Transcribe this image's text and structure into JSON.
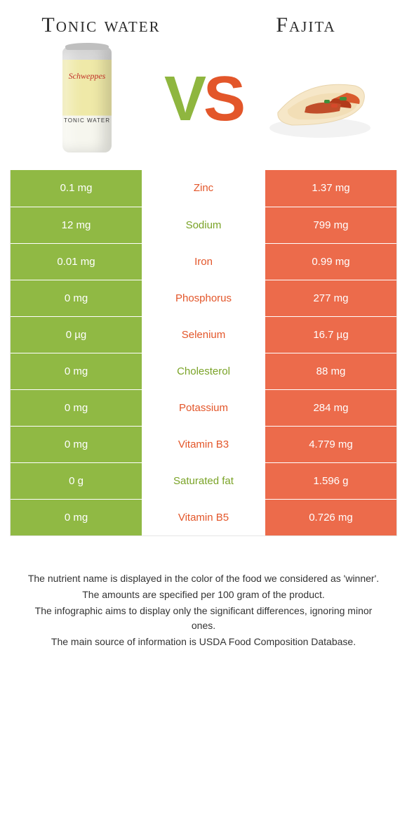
{
  "header": {
    "left_title": "Tonic water",
    "right_title": "Fajita",
    "vs_v": "V",
    "vs_s": "S",
    "can_brand": "Schweppes",
    "can_sub": "TONIC WATER"
  },
  "colors": {
    "green": "#90b944",
    "orange": "#ec6b4b",
    "green_text": "#7aa327",
    "orange_text": "#e3562a",
    "border": "#e6e6e6",
    "bg": "#ffffff"
  },
  "table": {
    "rows": [
      {
        "left": "0.1 mg",
        "label": "Zinc",
        "right": "1.37 mg",
        "winner": "orange"
      },
      {
        "left": "12 mg",
        "label": "Sodium",
        "right": "799 mg",
        "winner": "green"
      },
      {
        "left": "0.01 mg",
        "label": "Iron",
        "right": "0.99 mg",
        "winner": "orange"
      },
      {
        "left": "0 mg",
        "label": "Phosphorus",
        "right": "277 mg",
        "winner": "orange"
      },
      {
        "left": "0 µg",
        "label": "Selenium",
        "right": "16.7 µg",
        "winner": "orange"
      },
      {
        "left": "0 mg",
        "label": "Cholesterol",
        "right": "88 mg",
        "winner": "green"
      },
      {
        "left": "0 mg",
        "label": "Potassium",
        "right": "284 mg",
        "winner": "orange"
      },
      {
        "left": "0 mg",
        "label": "Vitamin B3",
        "right": "4.779 mg",
        "winner": "orange"
      },
      {
        "left": "0 g",
        "label": "Saturated fat",
        "right": "1.596 g",
        "winner": "green"
      },
      {
        "left": "0 mg",
        "label": "Vitamin B5",
        "right": "0.726 mg",
        "winner": "orange"
      }
    ]
  },
  "footer": {
    "l1": "The nutrient name is displayed in the color of the food we considered as 'winner'.",
    "l2": "The amounts are specified per 100 gram of the product.",
    "l3": "The infographic aims to display only the significant differences, ignoring minor ones.",
    "l4": "The main source of information is USDA Food Composition Database."
  }
}
